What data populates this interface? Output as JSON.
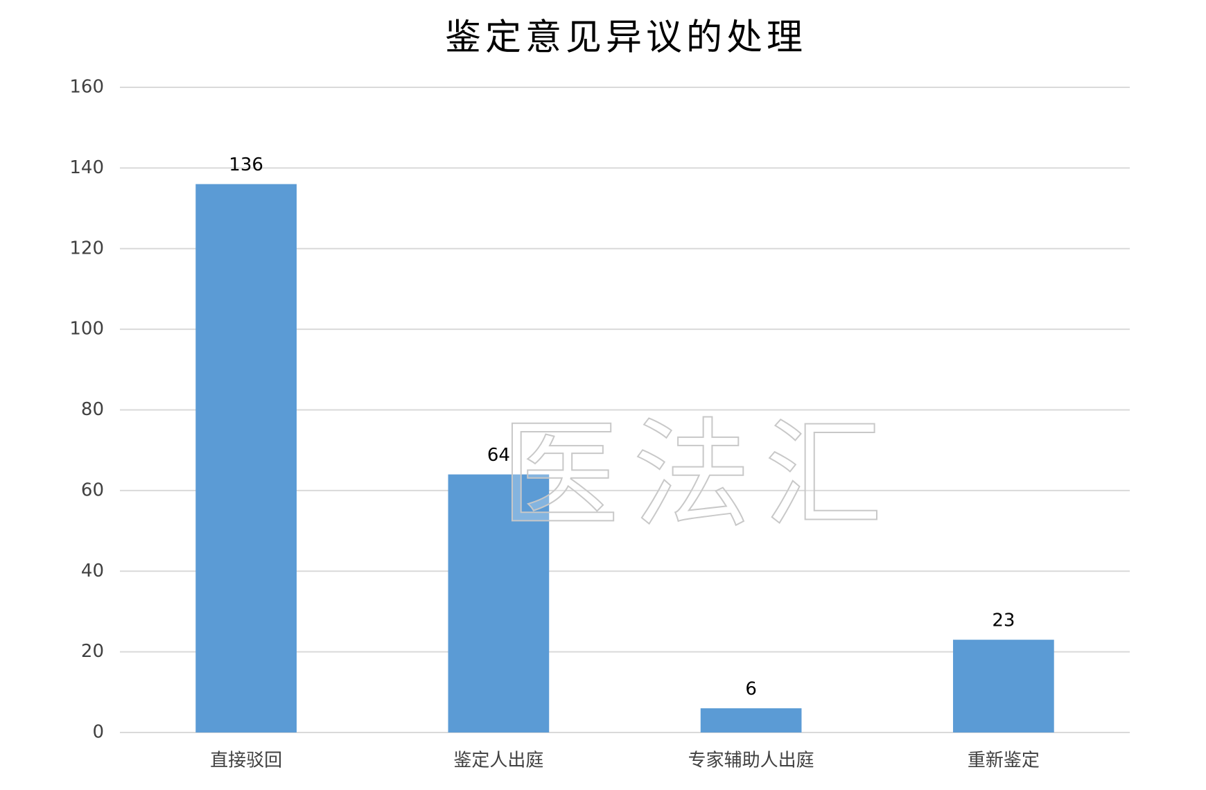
{
  "chart_data": {
    "type": "bar",
    "title": "鉴定意见异议的处理",
    "categories": [
      "直接驳回",
      "鉴定人出庭",
      "专家辅助人出庭",
      "重新鉴定"
    ],
    "values": [
      136,
      64,
      6,
      23
    ],
    "color": "#5b9bd5",
    "ylim": [
      0,
      160
    ],
    "yticks": [
      0,
      20,
      40,
      60,
      80,
      100,
      120,
      140,
      160
    ],
    "grid": true,
    "watermark": "医法汇"
  }
}
